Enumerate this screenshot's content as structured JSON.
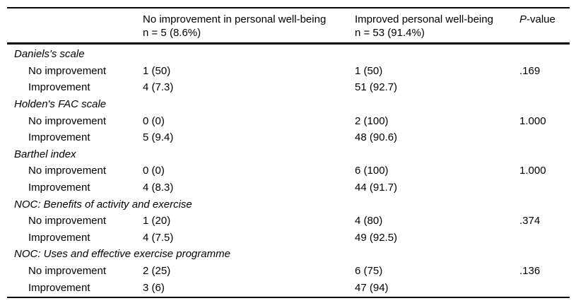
{
  "header": {
    "no_improvement_group": {
      "title": "No improvement in personal well-being",
      "count": "n   =   5 (8.6%)"
    },
    "improved_group": {
      "title": "Improved personal well-being",
      "count": "n   =   53 (91.4%)"
    },
    "p_value": {
      "italic": "P",
      "rest": "-value"
    }
  },
  "sections": [
    {
      "label": "Daniels's scale",
      "rows": [
        {
          "label": "No improvement",
          "no_improvement": "1 (50)",
          "improved": "1 (50)",
          "p": ".169"
        },
        {
          "label": "Improvement",
          "no_improvement": "4 (7.3)",
          "improved": "51 (92.7)",
          "p": ""
        }
      ]
    },
    {
      "label": "Holden's FAC scale",
      "rows": [
        {
          "label": "No improvement",
          "no_improvement": "0 (0)",
          "improved": "2 (100)",
          "p": "1.000"
        },
        {
          "label": "Improvement",
          "no_improvement": "5 (9.4)",
          "improved": "48 (90.6)",
          "p": ""
        }
      ]
    },
    {
      "label": "Barthel index",
      "rows": [
        {
          "label": "No improvement",
          "no_improvement": "0 (0)",
          "improved": "6 (100)",
          "p": "1.000"
        },
        {
          "label": "Improvement",
          "no_improvement": "4 (8.3)",
          "improved": "44 (91.7)",
          "p": ""
        }
      ]
    },
    {
      "label": "NOC: Benefits of activity and exercise",
      "rows": [
        {
          "label": "No improvement",
          "no_improvement": "1 (20)",
          "improved": "4 (80)",
          "p": ".374"
        },
        {
          "label": "Improvement",
          "no_improvement": "4 (7.5)",
          "improved": "49 (92.5)",
          "p": ""
        }
      ]
    },
    {
      "label": "NOC: Uses and effective exercise programme",
      "rows": [
        {
          "label": "No improvement",
          "no_improvement": "2 (25)",
          "improved": "6 (75)",
          "p": ".136"
        },
        {
          "label": "Improvement",
          "no_improvement": "3 (6)",
          "improved": "47 (94)",
          "p": ""
        }
      ]
    }
  ]
}
